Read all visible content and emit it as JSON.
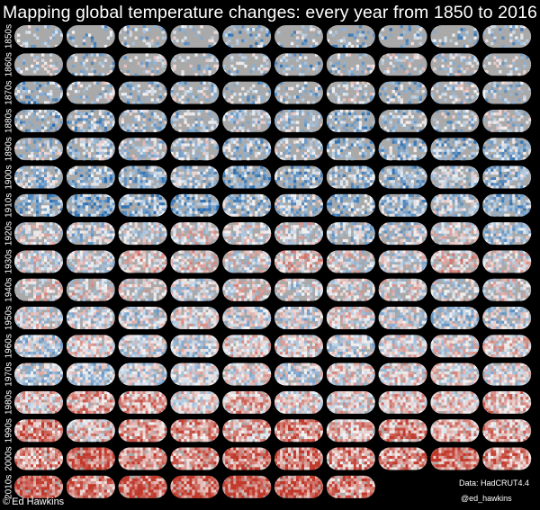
{
  "title": "Mapping global temperature changes: every year from 1850 to 2016",
  "chart_data": {
    "type": "heatmap",
    "title": "Mapping global temperature changes: every year from 1850 to 2016",
    "first_year": 1850,
    "last_year": 2016,
    "maps_per_row": 10,
    "decade_labels": [
      "1850s",
      "1860s",
      "1870s",
      "1880s",
      "1890s",
      "1900s",
      "1910s",
      "1920s",
      "1930s",
      "1940s",
      "1950s",
      "1960s",
      "1970s",
      "1980s",
      "1990s",
      "2000s",
      "2010s"
    ],
    "warmth_by_decade": [
      -0.35,
      -0.3,
      -0.3,
      -0.3,
      -0.35,
      -0.4,
      -0.4,
      -0.1,
      0.05,
      0.05,
      -0.1,
      -0.05,
      -0.05,
      0.25,
      0.4,
      0.6,
      0.75
    ],
    "coverage_by_decade": [
      0.25,
      0.3,
      0.35,
      0.45,
      0.55,
      0.6,
      0.65,
      0.65,
      0.7,
      0.6,
      0.8,
      0.85,
      0.85,
      0.9,
      0.92,
      0.93,
      0.93
    ],
    "colors": {
      "background": "#000000",
      "no_data": "#a9a9a9",
      "cold": "#2c6fb0",
      "neutral": "#f4f4f4",
      "warm": "#c0392b"
    }
  },
  "footer": {
    "data_source": "Data: HadCRUT4.4",
    "handle": "@ed_hawkins",
    "credit_symbol": "©",
    "credit_name": "Ed Hawkins"
  }
}
